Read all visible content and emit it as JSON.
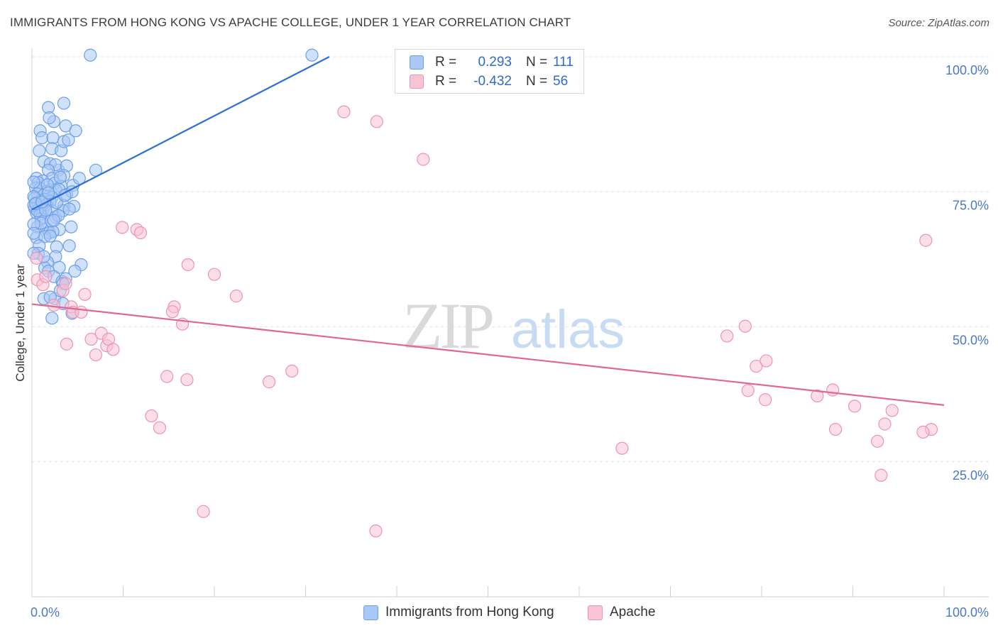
{
  "title": "IMMIGRANTS FROM HONG KONG VS APACHE COLLEGE, UNDER 1 YEAR CORRELATION CHART",
  "source": "Source: ZipAtlas.com",
  "watermark": {
    "zip": "ZIP",
    "atlas": "atlas"
  },
  "legend": {
    "series1": {
      "r_label": "R =",
      "r_value": "0.293",
      "n_label": "N =",
      "n_value": "111"
    },
    "series2": {
      "r_label": "R =",
      "r_value": "-0.432",
      "n_label": "N =",
      "n_value": "56"
    }
  },
  "colors": {
    "blue_fill": "#a9c8f5",
    "blue_stroke": "#6d9fe6",
    "blue_line": "#2b70d6",
    "pink_fill": "#f8c3d4",
    "pink_stroke": "#ee93b1",
    "pink_line": "#e0678f",
    "tick_text": "#4a78c8"
  },
  "chart_data": {
    "type": "scatter",
    "title": "IMMIGRANTS FROM HONG KONG VS APACHE COLLEGE, UNDER 1 YEAR CORRELATION CHART",
    "xlabel": "",
    "ylabel": "College, Under 1 year",
    "xlim": [
      0,
      100
    ],
    "ylim": [
      0,
      100
    ],
    "x_tick_labels": [
      "0.0%",
      "100.0%"
    ],
    "y_tick_labels": [
      "25.0%",
      "50.0%",
      "75.0%",
      "100.0%"
    ],
    "y_tick_values": [
      25,
      50,
      75,
      100
    ],
    "grid": true,
    "legend_position": "top-center",
    "series": [
      {
        "name": "Immigrants from Hong Kong",
        "color": "#a9c8f5",
        "trendline": {
          "x": [
            0.0,
            32.6
          ],
          "y": [
            71.7,
            100.0
          ]
        },
        "points": [
          [
            6.4,
            100.3
          ],
          [
            30.7,
            100.3
          ],
          [
            1.8,
            90.6
          ],
          [
            3.5,
            91.4
          ],
          [
            2.4,
            88.0
          ],
          [
            1.9,
            88.7
          ],
          [
            3.7,
            87.2
          ],
          [
            4.8,
            86.3
          ],
          [
            0.9,
            86.3
          ],
          [
            1.1,
            85.0
          ],
          [
            2.3,
            85.0
          ],
          [
            0.8,
            82.6
          ],
          [
            2.2,
            83.0
          ],
          [
            3.2,
            82.6
          ],
          [
            3.5,
            84.3
          ],
          [
            4.0,
            84.6
          ],
          [
            1.3,
            80.6
          ],
          [
            2.0,
            80.2
          ],
          [
            2.9,
            79.0
          ],
          [
            2.6,
            80.0
          ],
          [
            3.8,
            79.8
          ],
          [
            7.0,
            79.0
          ],
          [
            1.8,
            79.0
          ],
          [
            2.2,
            77.5
          ],
          [
            3.5,
            78.0
          ],
          [
            0.5,
            77.5
          ],
          [
            1.2,
            77.0
          ],
          [
            0.7,
            76.7
          ],
          [
            2.5,
            76.6
          ],
          [
            3.2,
            76.0
          ],
          [
            4.5,
            76.2
          ],
          [
            5.2,
            77.5
          ],
          [
            0.4,
            75.7
          ],
          [
            0.9,
            75.6
          ],
          [
            1.7,
            75.1
          ],
          [
            2.6,
            75.3
          ],
          [
            3.0,
            75.4
          ],
          [
            0.6,
            74.6
          ],
          [
            1.3,
            74.4
          ],
          [
            2.2,
            74.0
          ],
          [
            3.8,
            74.5
          ],
          [
            4.4,
            75.0
          ],
          [
            0.3,
            73.8
          ],
          [
            1.0,
            73.4
          ],
          [
            1.4,
            73.6
          ],
          [
            2.0,
            73.2
          ],
          [
            0.4,
            72.9
          ],
          [
            1.6,
            72.6
          ],
          [
            3.5,
            72.4
          ],
          [
            4.6,
            72.3
          ],
          [
            0.3,
            71.9
          ],
          [
            0.8,
            72.0
          ],
          [
            1.2,
            71.6
          ],
          [
            2.2,
            71.5
          ],
          [
            0.5,
            71.1
          ],
          [
            0.9,
            70.8
          ],
          [
            2.6,
            70.3
          ],
          [
            3.4,
            71.5
          ],
          [
            1.0,
            70.0
          ],
          [
            3.0,
            68.0
          ],
          [
            0.6,
            68.5
          ],
          [
            1.6,
            68.2
          ],
          [
            1.9,
            67.4
          ],
          [
            2.3,
            67.6
          ],
          [
            4.3,
            68.5
          ],
          [
            0.5,
            66.5
          ],
          [
            1.4,
            66.7
          ],
          [
            2.0,
            66.8
          ],
          [
            0.8,
            65.0
          ],
          [
            2.7,
            64.8
          ],
          [
            4.1,
            65.0
          ],
          [
            0.7,
            63.6
          ],
          [
            2.6,
            63.0
          ],
          [
            1.7,
            62.0
          ],
          [
            3.0,
            61.0
          ],
          [
            5.4,
            61.5
          ],
          [
            1.4,
            60.9
          ],
          [
            1.8,
            60.3
          ],
          [
            2.4,
            59.3
          ],
          [
            3.3,
            58.4
          ],
          [
            3.7,
            58.9
          ],
          [
            4.7,
            60.3
          ],
          [
            3.4,
            58.0
          ],
          [
            1.3,
            55.2
          ],
          [
            2.5,
            55.2
          ],
          [
            2.0,
            55.5
          ],
          [
            3.1,
            56.7
          ],
          [
            3.4,
            54.3
          ],
          [
            4.4,
            52.5
          ],
          [
            2.2,
            51.6
          ],
          [
            1.3,
            63.0
          ],
          [
            1.0,
            69.2
          ],
          [
            2.1,
            69.6
          ],
          [
            1.7,
            76.3
          ],
          [
            3.1,
            77.7
          ],
          [
            2.7,
            73.0
          ],
          [
            0.2,
            72.5
          ],
          [
            0.2,
            76.8
          ],
          [
            0.2,
            74.1
          ],
          [
            0.2,
            69.0
          ],
          [
            0.2,
            67.3
          ],
          [
            0.2,
            63.6
          ],
          [
            0.6,
            71.5
          ],
          [
            0.4,
            72.8
          ],
          [
            1.5,
            71.6
          ],
          [
            1.1,
            73.1
          ],
          [
            2.9,
            70.6
          ],
          [
            2.4,
            69.7
          ],
          [
            3.6,
            74.3
          ],
          [
            4.1,
            71.8
          ],
          [
            1.8,
            74.8
          ]
        ]
      },
      {
        "name": "Apache",
        "color": "#f8c3d4",
        "trendline": {
          "x": [
            0.0,
            100.0
          ],
          "y": [
            54.2,
            35.5
          ]
        },
        "points": [
          [
            34.2,
            89.8
          ],
          [
            37.8,
            88.0
          ],
          [
            42.9,
            81.0
          ],
          [
            98.0,
            66.0
          ],
          [
            9.9,
            68.4
          ],
          [
            11.5,
            68.0
          ],
          [
            11.9,
            67.4
          ],
          [
            17.1,
            61.5
          ],
          [
            20.0,
            59.7
          ],
          [
            0.5,
            62.7
          ],
          [
            0.6,
            58.7
          ],
          [
            1.2,
            57.8
          ],
          [
            5.8,
            56.0
          ],
          [
            22.4,
            55.7
          ],
          [
            4.3,
            53.7
          ],
          [
            3.4,
            56.7
          ],
          [
            2.4,
            54.0
          ],
          [
            4.5,
            52.7
          ],
          [
            5.4,
            52.7
          ],
          [
            15.6,
            53.7
          ],
          [
            15.4,
            52.8
          ],
          [
            16.5,
            50.5
          ],
          [
            6.5,
            47.7
          ],
          [
            7.6,
            48.8
          ],
          [
            8.2,
            46.5
          ],
          [
            8.4,
            47.7
          ],
          [
            8.9,
            45.8
          ],
          [
            3.8,
            46.8
          ],
          [
            7.0,
            44.8
          ],
          [
            76.2,
            48.3
          ],
          [
            78.2,
            50.1
          ],
          [
            79.4,
            42.7
          ],
          [
            80.5,
            43.7
          ],
          [
            28.5,
            41.8
          ],
          [
            14.8,
            40.8
          ],
          [
            17.0,
            40.2
          ],
          [
            26.0,
            39.8
          ],
          [
            78.5,
            38.2
          ],
          [
            80.4,
            36.5
          ],
          [
            86.1,
            37.2
          ],
          [
            87.8,
            38.3
          ],
          [
            90.2,
            35.3
          ],
          [
            94.3,
            34.5
          ],
          [
            93.5,
            32.0
          ],
          [
            88.1,
            31.0
          ],
          [
            98.6,
            31.0
          ],
          [
            97.7,
            30.5
          ],
          [
            92.7,
            28.8
          ],
          [
            13.1,
            33.5
          ],
          [
            14.0,
            31.3
          ],
          [
            64.7,
            27.5
          ],
          [
            93.1,
            22.5
          ],
          [
            18.8,
            15.8
          ],
          [
            37.7,
            12.2
          ],
          [
            3.7,
            58.0
          ],
          [
            1.5,
            59.3
          ]
        ]
      }
    ]
  },
  "bottom_legend": {
    "series1": "Immigrants from Hong Kong",
    "series2": "Apache"
  }
}
